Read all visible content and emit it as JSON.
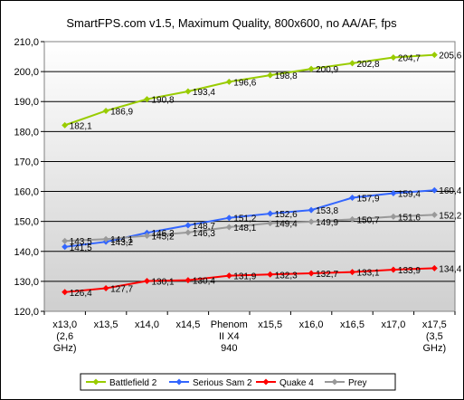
{
  "chart_data": {
    "type": "line",
    "title": "SmartFPS.com v1.5, Maximum Quality, 800x600, no AA/AF, fps",
    "ylim": [
      120,
      210
    ],
    "yticks": [
      "120,0",
      "130,0",
      "140,0",
      "150,0",
      "160,0",
      "170,0",
      "180,0",
      "190,0",
      "200,0",
      "210,0"
    ],
    "categories": [
      [
        "x13,0",
        "(2,6",
        "GHz)"
      ],
      [
        "x13,5"
      ],
      [
        "x14,0"
      ],
      [
        "x14,5"
      ],
      [
        "Phenom",
        "II X4",
        "940"
      ],
      [
        "x15,5"
      ],
      [
        "x16,0"
      ],
      [
        "x16,5"
      ],
      [
        "x17,0"
      ],
      [
        "x17,5",
        "(3,5",
        "GHz)"
      ]
    ],
    "legend_position": "bottom",
    "grid": "horizontal",
    "series": [
      {
        "name": "Battlefield 2",
        "color": "#99cc00",
        "marker": "diamond",
        "values": [
          182.1,
          186.9,
          190.8,
          193.4,
          196.6,
          198.8,
          200.9,
          202.8,
          204.7,
          205.6
        ],
        "labels": [
          "182,1",
          "186,9",
          "190,8",
          "193,4",
          "196,6",
          "198,8",
          "200,9",
          "202,8",
          "204,7",
          "205,6"
        ]
      },
      {
        "name": "Serious Sam 2",
        "color": "#3366ff",
        "marker": "diamond",
        "values": [
          141.5,
          143.2,
          146.2,
          148.7,
          151.2,
          152.6,
          153.8,
          157.9,
          159.4,
          160.4
        ],
        "labels": [
          "141,5",
          "143,2",
          "146,2",
          "148,7",
          "151,2",
          "152,6",
          "153,8",
          "157,9",
          "159,4",
          "160,4"
        ]
      },
      {
        "name": "Quake 4",
        "color": "#ff0000",
        "marker": "diamond",
        "values": [
          126.4,
          127.7,
          130.1,
          130.4,
          131.9,
          132.3,
          132.7,
          133.1,
          133.9,
          134.4
        ],
        "labels": [
          "126,4",
          "127,7",
          "130,1",
          "130,4",
          "131,9",
          "132,3",
          "132,7",
          "133,1",
          "133,9",
          "134,4"
        ]
      },
      {
        "name": "Prey",
        "color": "#999999",
        "marker": "diamond",
        "values": [
          143.5,
          144.1,
          145.2,
          146.3,
          148.1,
          149.4,
          149.9,
          150.7,
          151.6,
          152.2
        ],
        "labels": [
          "143,5",
          "144,1",
          "145,2",
          "146,3",
          "148,1",
          "149,4",
          "149,9",
          "150,7",
          "151,6",
          "152,2"
        ]
      }
    ]
  }
}
